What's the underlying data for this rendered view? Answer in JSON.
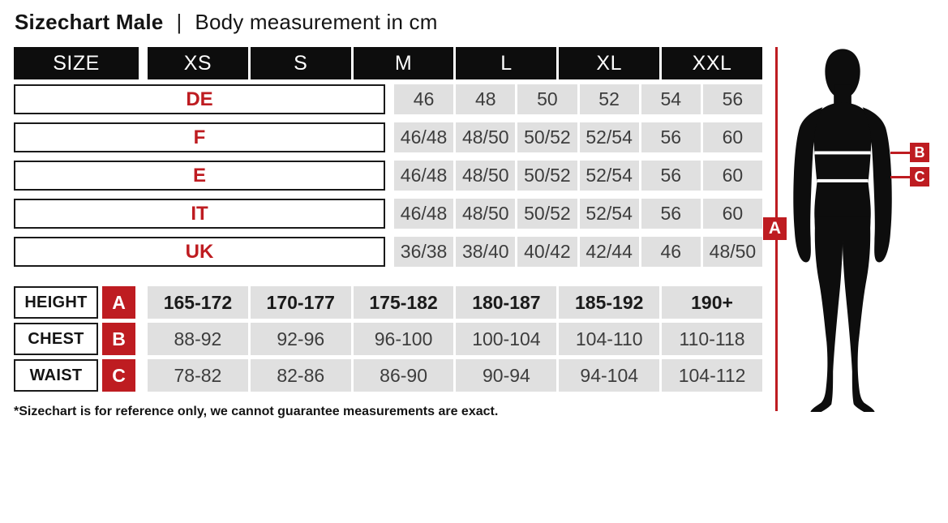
{
  "title": {
    "main": "Sizechart Male",
    "separator": "|",
    "subtitle": "Body measurement in cm"
  },
  "colors": {
    "accent_red": "#be1c21",
    "header_black": "#0d0d0d",
    "cell_gray": "#e0e0e0"
  },
  "table": {
    "size_header": "SIZE",
    "columns": [
      "XS",
      "S",
      "M",
      "L",
      "XL",
      "XXL"
    ],
    "region_rows": [
      {
        "label": "DE",
        "values": [
          "46",
          "48",
          "50",
          "52",
          "54",
          "56"
        ]
      },
      {
        "label": "F",
        "values": [
          "46/48",
          "48/50",
          "50/52",
          "52/54",
          "56",
          "60"
        ]
      },
      {
        "label": "E",
        "values": [
          "46/48",
          "48/50",
          "50/52",
          "52/54",
          "56",
          "60"
        ]
      },
      {
        "label": "IT",
        "values": [
          "46/48",
          "48/50",
          "50/52",
          "52/54",
          "56",
          "60"
        ]
      },
      {
        "label": "UK",
        "values": [
          "36/38",
          "38/40",
          "40/42",
          "42/44",
          "46",
          "48/50"
        ]
      }
    ],
    "measure_rows": [
      {
        "label": "HEIGHT",
        "marker": "A",
        "bold": true,
        "values": [
          "165-172",
          "170-177",
          "175-182",
          "180-187",
          "185-192",
          "190+"
        ]
      },
      {
        "label": "CHEST",
        "marker": "B",
        "bold": false,
        "values": [
          "88-92",
          "92-96",
          "96-100",
          "100-104",
          "104-110",
          "110-118"
        ]
      },
      {
        "label": "WAIST",
        "marker": "C",
        "bold": false,
        "values": [
          "78-82",
          "82-86",
          "86-90",
          "90-94",
          "94-104",
          "104-112"
        ]
      }
    ]
  },
  "footnote": "*Sizechart is for reference only, we cannot guarantee measurements are exact.",
  "figure": {
    "markers": {
      "a": "A",
      "b": "B",
      "c": "C"
    }
  }
}
